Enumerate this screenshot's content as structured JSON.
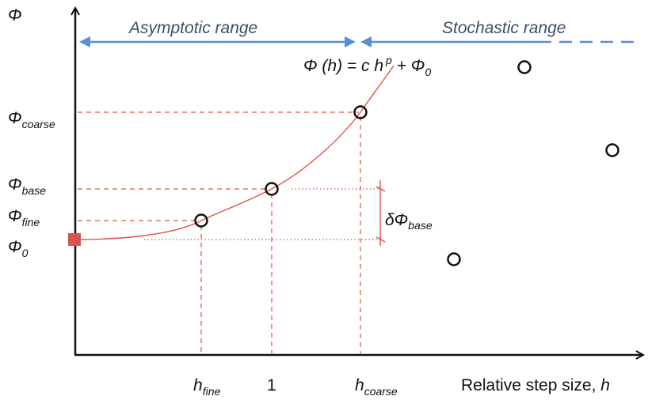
{
  "colors": {
    "axis": "#111111",
    "curve": "#e0524a",
    "guide": "#e0524a",
    "arrow": "#5b8fcf",
    "range_text": "#3d4d6b",
    "marker": "#d9534f",
    "point": "#111111"
  },
  "labels": {
    "y_axis_symbol": "Φ",
    "asymptotic_range": "Asymptotic range",
    "stochastic_range": "Stochastic range",
    "formula": {
      "lhs": "Φ (h) = c h",
      "exponent": "p",
      "plus": " + Φ",
      "zero_sub": "0"
    },
    "phi_coarse": {
      "base": "Φ",
      "sub": "coarse"
    },
    "phi_base": {
      "base": "Φ",
      "sub": "base"
    },
    "phi_fine": {
      "base": "Φ",
      "sub": "fine"
    },
    "phi_zero": {
      "base": "Φ",
      "sub": "0"
    },
    "delta_phi_base": {
      "base": "δΦ",
      "sub": "base"
    },
    "h_fine": {
      "base": "h",
      "sub": "fine"
    },
    "one": "1",
    "h_coarse": {
      "base": "h",
      "sub": "coarse"
    },
    "x_axis_title_text": "Relative step size, ",
    "x_axis_title_var": "h"
  },
  "icons": {
    "extrapolated_marker": "filled-square-marker",
    "sample_point": "open-circle-marker"
  }
}
